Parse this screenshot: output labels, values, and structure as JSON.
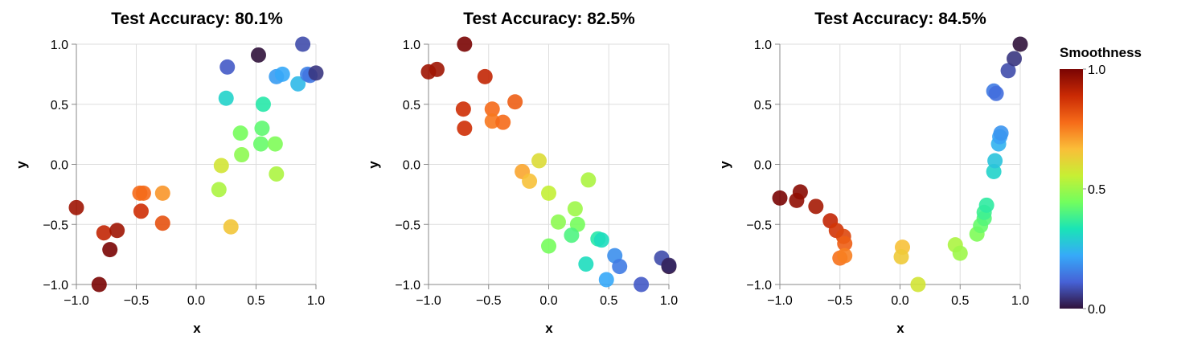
{
  "chart_data": [
    {
      "type": "scatter",
      "title": "Test Accuracy: 80.1%",
      "xlabel": "x",
      "ylabel": "y",
      "xlim": [
        -1.0,
        1.0
      ],
      "ylim": [
        -1.0,
        1.0
      ],
      "xticks": [
        -1.0,
        -0.5,
        0.0,
        0.5,
        1.0
      ],
      "yticks": [
        -1.0,
        -0.5,
        0.0,
        0.5,
        1.0
      ],
      "grid": true,
      "color_field": "Smoothness",
      "points": [
        {
          "x": -1.0,
          "y": -0.36,
          "c": 0.95
        },
        {
          "x": -0.81,
          "y": -1.0,
          "c": 1.0
        },
        {
          "x": -0.77,
          "y": -0.57,
          "c": 0.9
        },
        {
          "x": -0.72,
          "y": -0.71,
          "c": 1.0
        },
        {
          "x": -0.66,
          "y": -0.55,
          "c": 0.95
        },
        {
          "x": -0.47,
          "y": -0.24,
          "c": 0.78
        },
        {
          "x": -0.44,
          "y": -0.24,
          "c": 0.78
        },
        {
          "x": -0.46,
          "y": -0.39,
          "c": 0.88
        },
        {
          "x": -0.28,
          "y": -0.24,
          "c": 0.72
        },
        {
          "x": -0.28,
          "y": -0.49,
          "c": 0.82
        },
        {
          "x": 0.21,
          "y": -0.01,
          "c": 0.58
        },
        {
          "x": 0.19,
          "y": -0.21,
          "c": 0.52
        },
        {
          "x": 0.29,
          "y": -0.52,
          "c": 0.65
        },
        {
          "x": 0.26,
          "y": 0.81,
          "c": 0.1
        },
        {
          "x": 0.25,
          "y": 0.55,
          "c": 0.3
        },
        {
          "x": 0.37,
          "y": 0.26,
          "c": 0.45
        },
        {
          "x": 0.38,
          "y": 0.08,
          "c": 0.48
        },
        {
          "x": 0.52,
          "y": 0.91,
          "c": 0.0
        },
        {
          "x": 0.56,
          "y": 0.5,
          "c": 0.35
        },
        {
          "x": 0.55,
          "y": 0.3,
          "c": 0.42
        },
        {
          "x": 0.54,
          "y": 0.17,
          "c": 0.43
        },
        {
          "x": 0.66,
          "y": 0.17,
          "c": 0.46
        },
        {
          "x": 0.67,
          "y": -0.08,
          "c": 0.52
        },
        {
          "x": 0.67,
          "y": 0.73,
          "c": 0.2
        },
        {
          "x": 0.72,
          "y": 0.75,
          "c": 0.22
        },
        {
          "x": 0.85,
          "y": 0.67,
          "c": 0.25
        },
        {
          "x": 0.89,
          "y": 1.0,
          "c": 0.08
        },
        {
          "x": 0.93,
          "y": 0.75,
          "c": 0.16
        },
        {
          "x": 0.95,
          "y": 0.74,
          "c": 0.14
        },
        {
          "x": 1.0,
          "y": 0.76,
          "c": 0.05
        }
      ]
    },
    {
      "type": "scatter",
      "title": "Test Accuracy: 82.5%",
      "xlabel": "x",
      "ylabel": "y",
      "xlim": [
        -1.0,
        1.0
      ],
      "ylim": [
        -1.0,
        1.0
      ],
      "xticks": [
        -1.0,
        -0.5,
        0.0,
        0.5,
        1.0
      ],
      "yticks": [
        -1.0,
        -0.5,
        0.0,
        0.5,
        1.0
      ],
      "grid": true,
      "color_field": "Smoothness",
      "points": [
        {
          "x": -1.0,
          "y": 0.77,
          "c": 0.95
        },
        {
          "x": -0.93,
          "y": 0.79,
          "c": 0.95
        },
        {
          "x": -0.7,
          "y": 1.0,
          "c": 1.0
        },
        {
          "x": -0.53,
          "y": 0.73,
          "c": 0.9
        },
        {
          "x": -0.71,
          "y": 0.46,
          "c": 0.88
        },
        {
          "x": -0.7,
          "y": 0.3,
          "c": 0.88
        },
        {
          "x": -0.47,
          "y": 0.46,
          "c": 0.78
        },
        {
          "x": -0.47,
          "y": 0.36,
          "c": 0.76
        },
        {
          "x": -0.38,
          "y": 0.35,
          "c": 0.78
        },
        {
          "x": -0.28,
          "y": 0.52,
          "c": 0.8
        },
        {
          "x": -0.22,
          "y": -0.06,
          "c": 0.7
        },
        {
          "x": -0.16,
          "y": -0.14,
          "c": 0.66
        },
        {
          "x": -0.08,
          "y": 0.03,
          "c": 0.6
        },
        {
          "x": 0.0,
          "y": -0.24,
          "c": 0.55
        },
        {
          "x": 0.08,
          "y": -0.48,
          "c": 0.48
        },
        {
          "x": 0.0,
          "y": -0.68,
          "c": 0.45
        },
        {
          "x": 0.22,
          "y": -0.37,
          "c": 0.5
        },
        {
          "x": 0.24,
          "y": -0.5,
          "c": 0.45
        },
        {
          "x": 0.19,
          "y": -0.59,
          "c": 0.4
        },
        {
          "x": 0.33,
          "y": -0.13,
          "c": 0.52
        },
        {
          "x": 0.41,
          "y": -0.62,
          "c": 0.35
        },
        {
          "x": 0.44,
          "y": -0.63,
          "c": 0.32
        },
        {
          "x": 0.31,
          "y": -0.83,
          "c": 0.32
        },
        {
          "x": 0.48,
          "y": -0.96,
          "c": 0.22
        },
        {
          "x": 0.55,
          "y": -0.76,
          "c": 0.18
        },
        {
          "x": 0.59,
          "y": -0.85,
          "c": 0.15
        },
        {
          "x": 0.77,
          "y": -1.0,
          "c": 0.1
        },
        {
          "x": 0.94,
          "y": -0.78,
          "c": 0.08
        },
        {
          "x": 1.0,
          "y": -0.85,
          "c": 0.0
        },
        {
          "x": 1.0,
          "y": -0.84,
          "c": 0.03
        }
      ]
    },
    {
      "type": "scatter",
      "title": "Test Accuracy: 84.5%",
      "xlabel": "x",
      "ylabel": "y",
      "xlim": [
        -1.0,
        1.0
      ],
      "ylim": [
        -1.0,
        1.0
      ],
      "xticks": [
        -1.0,
        -0.5,
        0.0,
        0.5,
        1.0
      ],
      "yticks": [
        -1.0,
        -0.5,
        0.0,
        0.5,
        1.0
      ],
      "grid": true,
      "color_field": "Smoothness",
      "points": [
        {
          "x": -1.0,
          "y": -0.28,
          "c": 1.0
        },
        {
          "x": -0.83,
          "y": -0.23,
          "c": 0.98
        },
        {
          "x": -0.86,
          "y": -0.3,
          "c": 0.97
        },
        {
          "x": -0.7,
          "y": -0.35,
          "c": 0.94
        },
        {
          "x": -0.58,
          "y": -0.47,
          "c": 0.9
        },
        {
          "x": -0.53,
          "y": -0.55,
          "c": 0.87
        },
        {
          "x": -0.47,
          "y": -0.6,
          "c": 0.84
        },
        {
          "x": -0.46,
          "y": -0.66,
          "c": 0.8
        },
        {
          "x": -0.5,
          "y": -0.78,
          "c": 0.77
        },
        {
          "x": -0.46,
          "y": -0.76,
          "c": 0.75
        },
        {
          "x": 0.02,
          "y": -0.69,
          "c": 0.66
        },
        {
          "x": 0.01,
          "y": -0.77,
          "c": 0.64
        },
        {
          "x": 0.15,
          "y": -1.0,
          "c": 0.58
        },
        {
          "x": 0.46,
          "y": -0.67,
          "c": 0.52
        },
        {
          "x": 0.5,
          "y": -0.74,
          "c": 0.5
        },
        {
          "x": 0.64,
          "y": -0.58,
          "c": 0.46
        },
        {
          "x": 0.67,
          "y": -0.51,
          "c": 0.43
        },
        {
          "x": 0.7,
          "y": -0.45,
          "c": 0.41
        },
        {
          "x": 0.7,
          "y": -0.4,
          "c": 0.38
        },
        {
          "x": 0.72,
          "y": -0.34,
          "c": 0.36
        },
        {
          "x": 0.78,
          "y": -0.06,
          "c": 0.3
        },
        {
          "x": 0.79,
          "y": 0.03,
          "c": 0.27
        },
        {
          "x": 0.82,
          "y": 0.17,
          "c": 0.24
        },
        {
          "x": 0.83,
          "y": 0.23,
          "c": 0.21
        },
        {
          "x": 0.84,
          "y": 0.26,
          "c": 0.19
        },
        {
          "x": 0.78,
          "y": 0.61,
          "c": 0.15
        },
        {
          "x": 0.8,
          "y": 0.59,
          "c": 0.13
        },
        {
          "x": 0.9,
          "y": 0.78,
          "c": 0.08
        },
        {
          "x": 0.95,
          "y": 0.88,
          "c": 0.05
        },
        {
          "x": 1.0,
          "y": 1.0,
          "c": 0.0
        }
      ]
    }
  ],
  "legend": {
    "title": "Smoothness",
    "ticks": [
      "1.0",
      "0.5",
      "0.0"
    ],
    "tick_values": [
      1.0,
      0.5,
      0.0
    ],
    "colors": [
      "#30123b",
      "#4662d7",
      "#36aaf9",
      "#1ae4b6",
      "#72fe5e",
      "#c7ef34",
      "#fabe39",
      "#f66b19",
      "#ca2a04",
      "#7a0403"
    ]
  }
}
